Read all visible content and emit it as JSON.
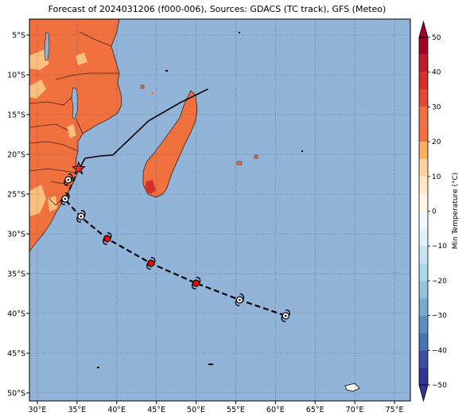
{
  "title": "Forecast of 2024031206 (f000-006), Sources: GDACS (TC track), GFS (Meteo)",
  "map": {
    "lon_range": [
      29,
      77
    ],
    "lat_range": [
      -51,
      -3
    ],
    "lat_ticks": [
      {
        "value": -5,
        "label": "5°S"
      },
      {
        "value": -10,
        "label": "10°S"
      },
      {
        "value": -15,
        "label": "15°S"
      },
      {
        "value": -20,
        "label": "20°S"
      },
      {
        "value": -25,
        "label": "25°S"
      },
      {
        "value": -30,
        "label": "30°S"
      },
      {
        "value": -35,
        "label": "35°S"
      },
      {
        "value": -40,
        "label": "40°S"
      },
      {
        "value": -45,
        "label": "45°S"
      },
      {
        "value": -50,
        "label": "50°S"
      }
    ],
    "lon_ticks": [
      {
        "value": 30,
        "label": "30°E"
      },
      {
        "value": 35,
        "label": "35°E"
      },
      {
        "value": 40,
        "label": "40°E"
      },
      {
        "value": 45,
        "label": "45°E"
      },
      {
        "value": 50,
        "label": "50°E"
      },
      {
        "value": 55,
        "label": "55°E"
      },
      {
        "value": 60,
        "label": "60°E"
      },
      {
        "value": 65,
        "label": "65°E"
      },
      {
        "value": 70,
        "label": "70°E"
      },
      {
        "value": 75,
        "label": "75°E"
      }
    ],
    "colors": {
      "ocean": "#92b4d9",
      "land_warm": "#f0703e",
      "land_mild": "#fdbf7e",
      "land_hot": "#d73027",
      "track": "#000000",
      "storm_strong": "#ff0000",
      "storm_weak": "#ffffff"
    },
    "past_track": [
      [
        51.5,
        -11.8
      ],
      [
        48,
        -13.5
      ],
      [
        44,
        -15.8
      ],
      [
        39.5,
        -20.1
      ],
      [
        38,
        -20.2
      ],
      [
        36,
        -20.5
      ],
      [
        35.3,
        -21.8
      ]
    ],
    "current_position": [
      35.2,
      -21.8
    ],
    "forecast_track": [
      [
        35.2,
        -21.8
      ],
      [
        33.5,
        -25.7
      ],
      [
        35.5,
        -27.9
      ],
      [
        38.8,
        -30.6
      ],
      [
        44.3,
        -33.7
      ],
      [
        50,
        -36.2
      ],
      [
        55.5,
        -38.3
      ],
      [
        61.3,
        -40.3
      ]
    ],
    "storm_symbols": [
      {
        "lon": 33.9,
        "lat": -23.2,
        "strength": "weak"
      },
      {
        "lon": 33.5,
        "lat": -25.6,
        "strength": "weak"
      },
      {
        "lon": 35.5,
        "lat": -27.8,
        "strength": "weak"
      },
      {
        "lon": 38.8,
        "lat": -30.6,
        "strength": "strong"
      },
      {
        "lon": 44.3,
        "lat": -33.7,
        "strength": "strong"
      },
      {
        "lon": 50.0,
        "lat": -36.2,
        "strength": "strong"
      },
      {
        "lon": 55.5,
        "lat": -38.3,
        "strength": "weak"
      },
      {
        "lon": 61.3,
        "lat": -40.3,
        "strength": "weak"
      }
    ]
  },
  "colorbar": {
    "label": "Min Temperature (°C)",
    "min": -50,
    "max": 50,
    "step": 10,
    "ticks": [
      {
        "value": 50,
        "label": "50"
      },
      {
        "value": 40,
        "label": "40"
      },
      {
        "value": 30,
        "label": "30"
      },
      {
        "value": 20,
        "label": "20"
      },
      {
        "value": 10,
        "label": "10"
      },
      {
        "value": 0,
        "label": "0"
      },
      {
        "value": -10,
        "label": "−10"
      },
      {
        "value": -20,
        "label": "−20"
      },
      {
        "value": -30,
        "label": "−30"
      },
      {
        "value": -40,
        "label": "−40"
      },
      {
        "value": -50,
        "label": "−50"
      }
    ],
    "bands": [
      {
        "from": 45,
        "to": 50,
        "color": "#a50026"
      },
      {
        "from": 40,
        "to": 45,
        "color": "#c11a28"
      },
      {
        "from": 35,
        "to": 40,
        "color": "#d73027"
      },
      {
        "from": 30,
        "to": 35,
        "color": "#e34a33"
      },
      {
        "from": 25,
        "to": 30,
        "color": "#f0703e"
      },
      {
        "from": 20,
        "to": 25,
        "color": "#f46d43"
      },
      {
        "from": 15,
        "to": 20,
        "color": "#fdae61"
      },
      {
        "from": 10,
        "to": 15,
        "color": "#fdd49e"
      },
      {
        "from": 5,
        "to": 10,
        "color": "#fee8c8"
      },
      {
        "from": 0,
        "to": 5,
        "color": "#fff5e6"
      },
      {
        "from": -5,
        "to": 0,
        "color": "#f1f9fc"
      },
      {
        "from": -10,
        "to": -5,
        "color": "#e0f3f8"
      },
      {
        "from": -15,
        "to": -10,
        "color": "#c6e3ef"
      },
      {
        "from": -20,
        "to": -15,
        "color": "#abd9e9"
      },
      {
        "from": -25,
        "to": -20,
        "color": "#92c5de"
      },
      {
        "from": -30,
        "to": -25,
        "color": "#74add1"
      },
      {
        "from": -35,
        "to": -30,
        "color": "#5b8fc4"
      },
      {
        "from": -40,
        "to": -35,
        "color": "#4575b4"
      },
      {
        "from": -45,
        "to": -40,
        "color": "#3a4fa0"
      },
      {
        "from": -50,
        "to": -45,
        "color": "#313695"
      }
    ]
  }
}
